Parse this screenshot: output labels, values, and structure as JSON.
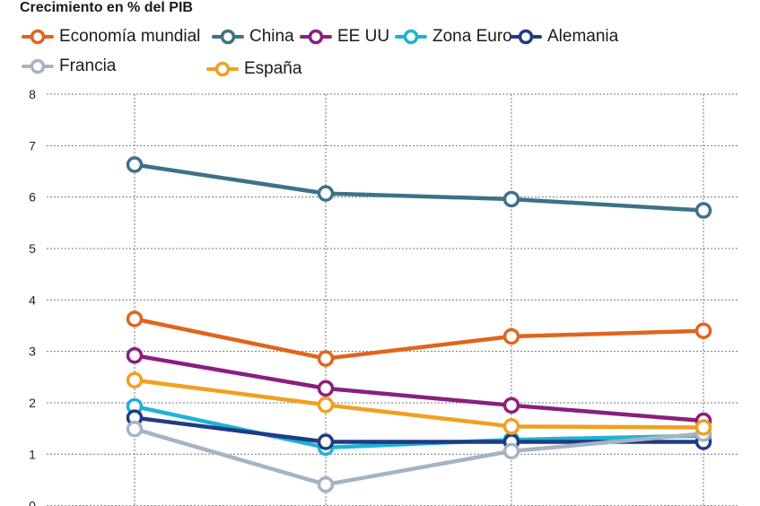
{
  "title": "Crecimiento en % del PIB",
  "chart_data": {
    "type": "line",
    "title": "Crecimiento en % del PIB",
    "xlabel": "",
    "ylabel": "",
    "ylim": [
      0,
      8
    ],
    "yticks": [
      "0",
      "1",
      "2",
      "3",
      "4",
      "5",
      "6",
      "7",
      "8"
    ],
    "x": [
      1,
      2,
      3,
      4
    ],
    "grid": true,
    "legend_position": "top",
    "series": [
      {
        "name": "Economía mundial",
        "color": "#e0651e",
        "values": [
          3.63,
          2.86,
          3.29,
          3.4
        ]
      },
      {
        "name": "China",
        "color": "#3d7288",
        "values": [
          6.63,
          6.07,
          5.96,
          5.74
        ]
      },
      {
        "name": "EE UU",
        "color": "#8a1f7e",
        "values": [
          2.92,
          2.28,
          1.95,
          1.65
        ]
      },
      {
        "name": "Zona Euro",
        "color": "#1fb3d3",
        "values": [
          1.93,
          1.13,
          1.28,
          1.36
        ]
      },
      {
        "name": "Alemania",
        "color": "#1f3b84",
        "values": [
          1.71,
          1.24,
          1.24,
          1.24
        ]
      },
      {
        "name": "Francia",
        "color": "#a5b4c3",
        "values": [
          1.49,
          0.41,
          1.06,
          1.4
        ]
      },
      {
        "name": "España",
        "color": "#f0a020",
        "values": [
          2.44,
          1.96,
          1.54,
          1.52
        ]
      }
    ]
  }
}
